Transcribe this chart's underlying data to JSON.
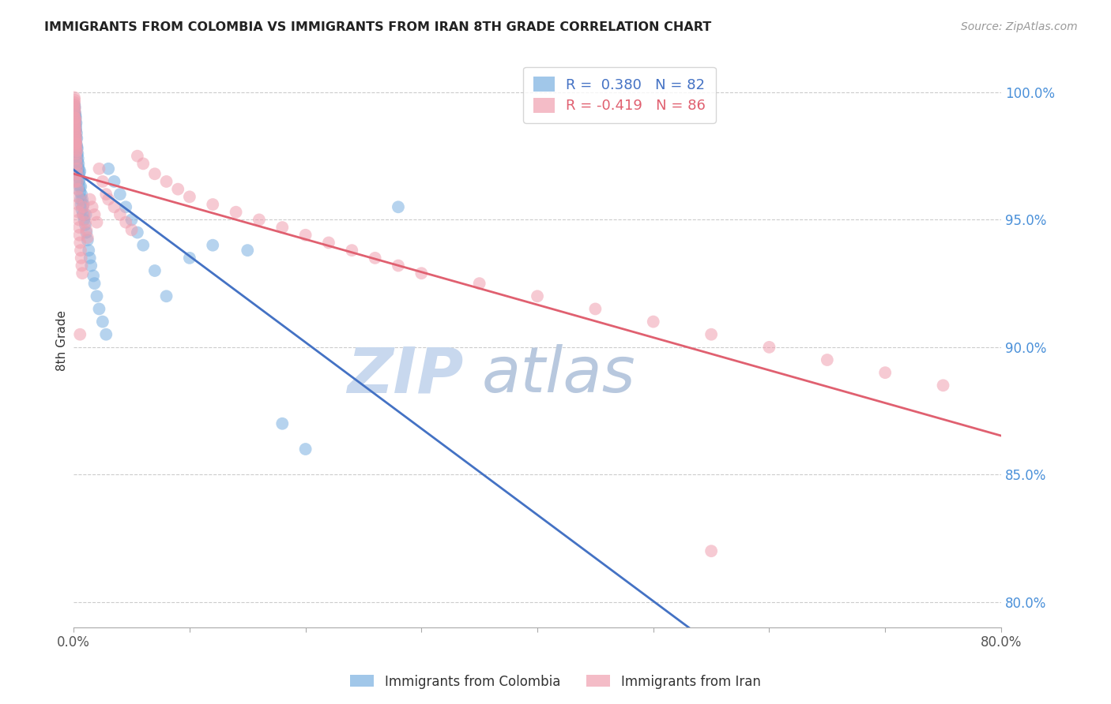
{
  "title": "IMMIGRANTS FROM COLOMBIA VS IMMIGRANTS FROM IRAN 8TH GRADE CORRELATION CHART",
  "source": "Source: ZipAtlas.com",
  "ylabel": "8th Grade",
  "yticks": [
    80.0,
    85.0,
    90.0,
    95.0,
    100.0
  ],
  "ytick_labels": [
    "80.0%",
    "85.0%",
    "90.0%",
    "95.0%",
    "100.0%"
  ],
  "xlim": [
    0.0,
    80.0
  ],
  "ylim": [
    79.0,
    101.5
  ],
  "colombia_R": 0.38,
  "colombia_N": 82,
  "iran_R": -0.419,
  "iran_N": 86,
  "colombia_color": "#7ab0e0",
  "iran_color": "#f0a0b0",
  "colombia_line_color": "#4472c4",
  "iran_line_color": "#e06070",
  "watermark_zip": "ZIP",
  "watermark_atlas": "atlas",
  "watermark_color_zip": "#c8d8ee",
  "watermark_color_atlas": "#b8c8de",
  "background_color": "#ffffff",
  "grid_color": "#cccccc",
  "right_axis_color": "#4a90d9",
  "colombia_x": [
    0.05,
    0.05,
    0.06,
    0.07,
    0.08,
    0.08,
    0.09,
    0.1,
    0.1,
    0.1,
    0.11,
    0.12,
    0.12,
    0.13,
    0.14,
    0.15,
    0.15,
    0.16,
    0.18,
    0.18,
    0.19,
    0.2,
    0.22,
    0.22,
    0.24,
    0.25,
    0.26,
    0.28,
    0.28,
    0.3,
    0.32,
    0.33,
    0.35,
    0.36,
    0.38,
    0.4,
    0.42,
    0.42,
    0.45,
    0.45,
    0.48,
    0.5,
    0.52,
    0.55,
    0.55,
    0.6,
    0.62,
    0.65,
    0.68,
    0.7,
    0.75,
    0.8,
    0.85,
    0.9,
    1.0,
    1.05,
    1.1,
    1.2,
    1.3,
    1.4,
    1.5,
    1.7,
    1.8,
    2.0,
    2.2,
    2.5,
    2.8,
    3.0,
    3.5,
    4.0,
    4.5,
    5.0,
    5.5,
    6.0,
    7.0,
    8.0,
    10.0,
    12.0,
    15.0,
    18.0,
    20.0,
    28.0
  ],
  "colombia_y": [
    99.2,
    98.5,
    99.0,
    99.3,
    98.8,
    99.5,
    99.1,
    98.9,
    99.4,
    98.7,
    99.0,
    98.6,
    99.2,
    98.4,
    98.8,
    99.1,
    98.3,
    98.7,
    98.5,
    99.0,
    98.2,
    98.6,
    98.0,
    98.8,
    97.8,
    98.4,
    97.6,
    98.2,
    97.9,
    97.5,
    97.8,
    97.3,
    97.6,
    97.1,
    97.4,
    96.9,
    97.2,
    96.7,
    97.0,
    96.5,
    96.8,
    96.3,
    96.6,
    96.1,
    96.9,
    95.8,
    96.3,
    95.6,
    96.0,
    95.4,
    95.8,
    95.2,
    95.6,
    95.0,
    94.8,
    95.2,
    94.5,
    94.2,
    93.8,
    93.5,
    93.2,
    92.8,
    92.5,
    92.0,
    91.5,
    91.0,
    90.5,
    97.0,
    96.5,
    96.0,
    95.5,
    95.0,
    94.5,
    94.0,
    93.0,
    92.0,
    93.5,
    94.0,
    93.8,
    87.0,
    86.0,
    95.5
  ],
  "iran_x": [
    0.05,
    0.05,
    0.06,
    0.07,
    0.08,
    0.08,
    0.09,
    0.1,
    0.1,
    0.11,
    0.12,
    0.13,
    0.14,
    0.15,
    0.15,
    0.16,
    0.17,
    0.18,
    0.19,
    0.2,
    0.21,
    0.22,
    0.23,
    0.25,
    0.26,
    0.28,
    0.3,
    0.32,
    0.35,
    0.38,
    0.4,
    0.42,
    0.45,
    0.48,
    0.5,
    0.55,
    0.6,
    0.65,
    0.7,
    0.75,
    0.8,
    0.9,
    1.0,
    1.1,
    1.2,
    1.4,
    1.6,
    1.8,
    2.0,
    2.2,
    2.5,
    2.8,
    3.0,
    3.5,
    4.0,
    4.5,
    5.0,
    5.5,
    6.0,
    7.0,
    8.0,
    9.0,
    10.0,
    12.0,
    14.0,
    16.0,
    18.0,
    20.0,
    22.0,
    24.0,
    26.0,
    28.0,
    30.0,
    35.0,
    40.0,
    45.0,
    50.0,
    55.0,
    60.0,
    65.0,
    70.0,
    75.0,
    0.12,
    0.18,
    0.55,
    55.0
  ],
  "iran_y": [
    99.8,
    99.5,
    99.6,
    99.7,
    99.3,
    99.0,
    99.4,
    98.8,
    99.2,
    98.6,
    99.0,
    98.4,
    98.7,
    98.2,
    98.9,
    98.0,
    98.5,
    97.8,
    98.3,
    97.6,
    98.1,
    97.4,
    97.9,
    97.2,
    97.7,
    97.0,
    96.8,
    96.5,
    96.2,
    95.9,
    95.6,
    95.3,
    95.0,
    94.7,
    94.4,
    94.1,
    93.8,
    93.5,
    93.2,
    92.9,
    95.5,
    95.2,
    94.9,
    94.6,
    94.3,
    95.8,
    95.5,
    95.2,
    94.9,
    97.0,
    96.5,
    96.0,
    95.8,
    95.5,
    95.2,
    94.9,
    94.6,
    97.5,
    97.2,
    96.8,
    96.5,
    96.2,
    95.9,
    95.6,
    95.3,
    95.0,
    94.7,
    94.4,
    94.1,
    93.8,
    93.5,
    93.2,
    92.9,
    92.5,
    92.0,
    91.5,
    91.0,
    90.5,
    90.0,
    89.5,
    89.0,
    88.5,
    96.5,
    98.0,
    90.5,
    82.0
  ]
}
